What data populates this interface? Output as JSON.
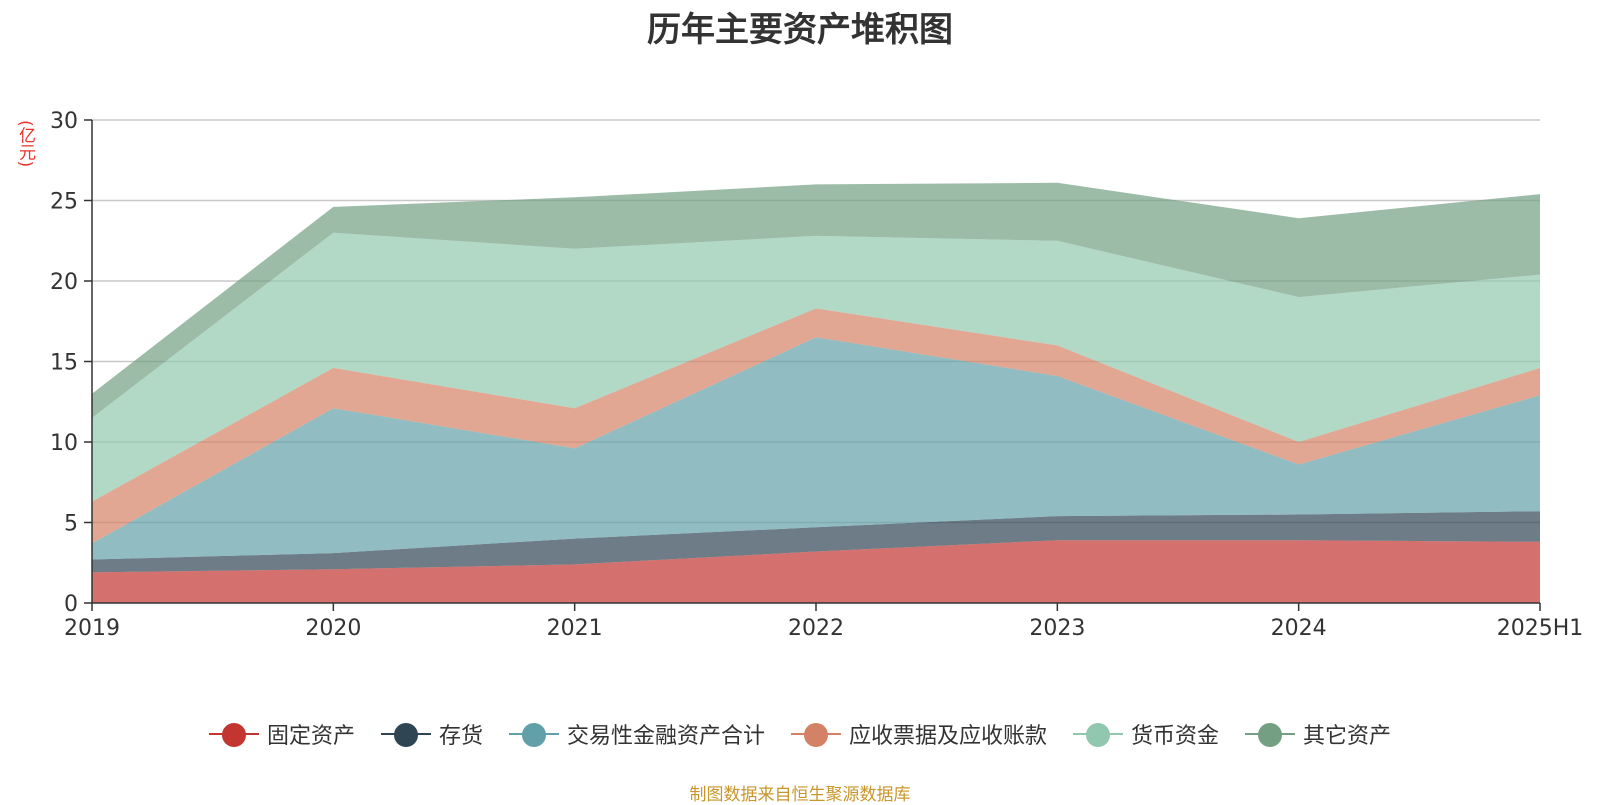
{
  "chart_data": {
    "type": "area",
    "stacked": true,
    "title": "历年主要资产堆积图",
    "unit_label": "(亿元)",
    "categories": [
      "2019",
      "2020",
      "2021",
      "2022",
      "2023",
      "2024",
      "2025H1"
    ],
    "ylim": [
      0,
      30
    ],
    "yticks": [
      0,
      5,
      10,
      15,
      20,
      25,
      30
    ],
    "grid": true,
    "legend_position": "bottom",
    "series": [
      {
        "name": "固定资产",
        "color": "#c23531",
        "values": [
          1.9,
          2.1,
          2.4,
          3.2,
          3.9,
          3.9,
          3.8
        ]
      },
      {
        "name": "存货",
        "color": "#2f4554",
        "values": [
          0.8,
          1.0,
          1.6,
          1.5,
          1.5,
          1.6,
          1.9
        ]
      },
      {
        "name": "交易性金融资产合计",
        "color": "#61a0a8",
        "values": [
          1.0,
          9.0,
          5.6,
          11.8,
          8.7,
          3.1,
          7.2
        ]
      },
      {
        "name": "应收票据及应收账款",
        "color": "#d48265",
        "values": [
          2.6,
          2.5,
          2.5,
          1.8,
          1.9,
          1.4,
          1.7
        ]
      },
      {
        "name": "货币资金",
        "color": "#91c7ae",
        "values": [
          5.2,
          8.4,
          9.9,
          4.5,
          6.5,
          9.0,
          5.8
        ]
      },
      {
        "name": "其它资产",
        "color": "#749f83",
        "values": [
          1.5,
          1.6,
          3.2,
          3.2,
          3.6,
          4.9,
          5.0
        ]
      }
    ]
  },
  "source_note": "制图数据来自恒生聚源数据库"
}
